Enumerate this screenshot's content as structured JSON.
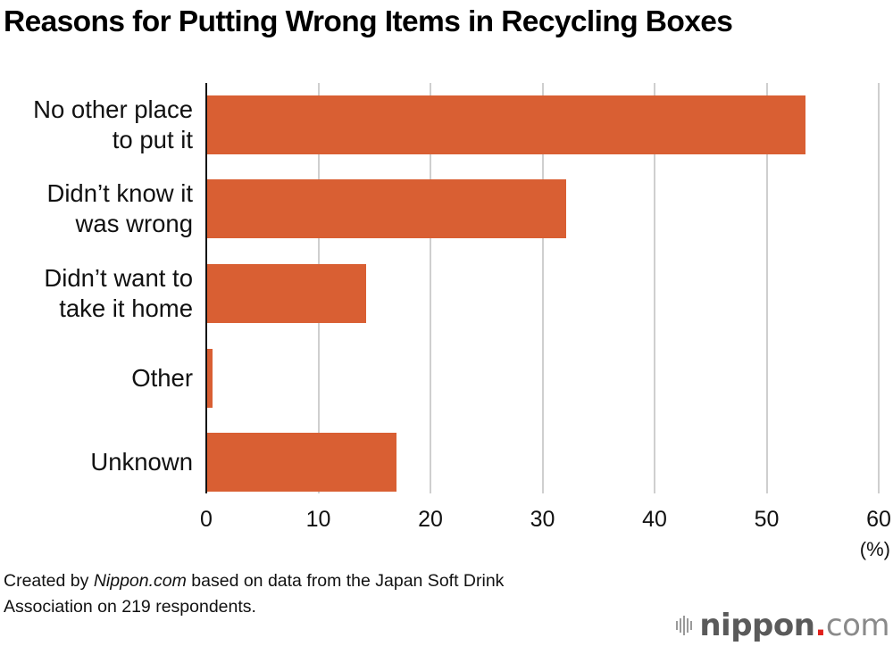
{
  "title": "Reasons for Putting Wrong Items in Recycling Boxes",
  "colors": {
    "bar": "#D95F33",
    "grid": "#CFCFCF",
    "axis": "#111111",
    "logo_dot": "#E0201B"
  },
  "chart_data": {
    "type": "bar",
    "orientation": "horizontal",
    "title": "Reasons for Putting Wrong Items in Recycling Boxes",
    "categories": [
      "No other place to put it",
      "Didn’t know it was wrong",
      "Didn’t want to take it home",
      "Other",
      "Unknown"
    ],
    "values": [
      53.4,
      32.0,
      14.2,
      0.5,
      16.9
    ],
    "xlabel": "(%)",
    "ylabel": "",
    "xlim": [
      0,
      60
    ],
    "xticks": [
      0,
      10,
      20,
      30,
      40,
      50,
      60
    ],
    "grid": true,
    "legend": null
  },
  "labels": [
    {
      "line1": "No other place",
      "line2": "to put it"
    },
    {
      "line1": "Didn’t know it",
      "line2": "was wrong"
    },
    {
      "line1": "Didn’t want to",
      "line2": "take it home"
    },
    {
      "line1": "Other",
      "line2": ""
    },
    {
      "line1": "Unknown",
      "line2": ""
    }
  ],
  "ticks": [
    "0",
    "10",
    "20",
    "30",
    "40",
    "50",
    "60"
  ],
  "unit": "(%)",
  "footer": {
    "prefix": "Created by ",
    "source_name": "Nippon.com",
    "suffix": " based on data from the Japan Soft Drink",
    "line2": "Association on 219 respondents."
  },
  "logo": {
    "name": "nippon",
    "dot": ".",
    "tld": "com"
  }
}
